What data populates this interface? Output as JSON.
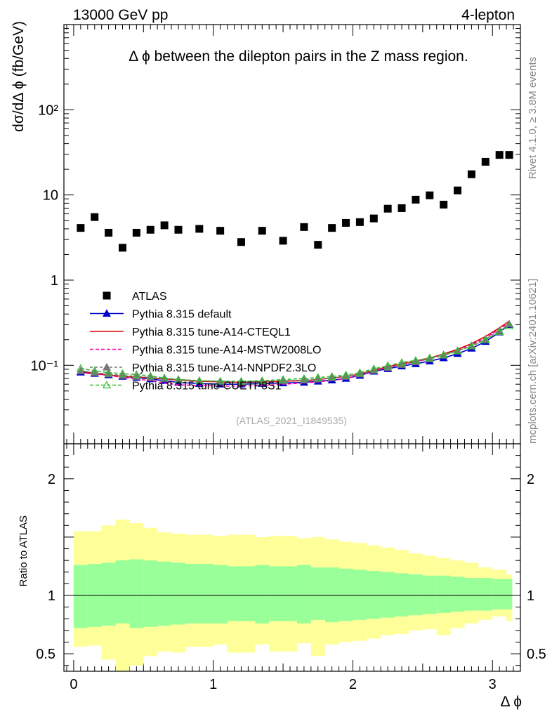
{
  "header": {
    "left": "13000 GeV pp",
    "right": "4-lepton"
  },
  "side_labels": {
    "rivet": "Rivet 4.1.0, ≥ 3.8M events",
    "mcplots": "mcplots.cern.ch [arXiv:2401.10621]"
  },
  "chart_data": {
    "type": "scatter",
    "title": "Δ ϕ between the dilepton pairs in the Z mass region.",
    "analysis_id": "(ATLAS_2021_I1849535)",
    "xlabel": "Δ ϕ",
    "ylabel": "dσ/dΔ ϕ (fb/GeV)",
    "ratio_ylabel": "Ratio to ATLAS",
    "xlim": [
      -0.07,
      3.2
    ],
    "ylim": [
      0.012,
      1000
    ],
    "ratio_ylim": [
      0.35,
      2.3
    ],
    "yscale": "log",
    "x_ticks": [
      0,
      1,
      2,
      3
    ],
    "y_tick_labels": [
      {
        "value": 0.1,
        "text": "10⁻¹"
      },
      {
        "value": 1,
        "text": "1"
      },
      {
        "value": 10,
        "text": "10"
      },
      {
        "value": 100,
        "text": "10²"
      }
    ],
    "ratio_tick_labels": [
      {
        "value": 0.5,
        "text": "0.5"
      },
      {
        "value": 1,
        "text": "1"
      },
      {
        "value": 2,
        "text": "2"
      }
    ],
    "bin_edges": [
      0,
      0.1,
      0.2,
      0.3,
      0.4,
      0.5,
      0.6,
      0.7,
      0.8,
      1.0,
      1.1,
      1.3,
      1.4,
      1.6,
      1.7,
      1.8,
      1.9,
      2.0,
      2.1,
      2.2,
      2.3,
      2.4,
      2.5,
      2.6,
      2.7,
      2.8,
      2.9,
      3.0,
      3.1,
      3.1416
    ],
    "x": [
      0.05,
      0.15,
      0.25,
      0.35,
      0.45,
      0.55,
      0.65,
      0.75,
      0.9,
      1.05,
      1.2,
      1.35,
      1.5,
      1.65,
      1.75,
      1.85,
      1.95,
      2.05,
      2.15,
      2.25,
      2.35,
      2.45,
      2.55,
      2.65,
      2.75,
      2.85,
      2.95,
      3.05,
      3.12
    ],
    "atlas": {
      "name": "ATLAS",
      "values": [
        4.1,
        5.5,
        3.6,
        2.4,
        3.6,
        3.9,
        4.4,
        3.9,
        4.0,
        3.8,
        2.8,
        3.8,
        2.9,
        4.2,
        2.6,
        4.1,
        4.7,
        4.8,
        5.3,
        6.9,
        7.0,
        8.8,
        9.9,
        7.7,
        11.3,
        17.5,
        24.5,
        29.5,
        29.5
      ],
      "band_inner_lo": [
        0.72,
        0.73,
        0.74,
        0.76,
        0.72,
        0.73,
        0.74,
        0.75,
        0.76,
        0.76,
        0.78,
        0.76,
        0.78,
        0.76,
        0.79,
        0.77,
        0.78,
        0.79,
        0.8,
        0.81,
        0.82,
        0.83,
        0.84,
        0.85,
        0.86,
        0.87,
        0.87,
        0.88,
        0.88
      ],
      "band_inner_hi": [
        1.26,
        1.27,
        1.28,
        1.3,
        1.31,
        1.3,
        1.29,
        1.28,
        1.27,
        1.26,
        1.25,
        1.26,
        1.25,
        1.26,
        1.24,
        1.24,
        1.23,
        1.22,
        1.21,
        1.2,
        1.19,
        1.18,
        1.17,
        1.17,
        1.16,
        1.15,
        1.15,
        1.14,
        1.14
      ],
      "band_outer_lo": [
        0.56,
        0.57,
        0.45,
        0.35,
        0.4,
        0.48,
        0.52,
        0.51,
        0.56,
        0.58,
        0.51,
        0.58,
        0.52,
        0.59,
        0.48,
        0.58,
        0.6,
        0.61,
        0.63,
        0.66,
        0.67,
        0.7,
        0.71,
        0.66,
        0.72,
        0.76,
        0.79,
        0.82,
        0.78
      ],
      "band_outer_hi": [
        1.55,
        1.55,
        1.6,
        1.65,
        1.62,
        1.58,
        1.54,
        1.53,
        1.52,
        1.51,
        1.52,
        1.5,
        1.51,
        1.49,
        1.5,
        1.48,
        1.46,
        1.45,
        1.43,
        1.41,
        1.39,
        1.36,
        1.34,
        1.32,
        1.3,
        1.28,
        1.24,
        1.22,
        1.18
      ]
    },
    "series": [
      {
        "name": "Pythia 8.315 default",
        "color": "#0000cc",
        "dash": "",
        "marker": "triangle-filled",
        "values": [
          0.083,
          0.08,
          0.077,
          0.074,
          0.072,
          0.069,
          0.066,
          0.063,
          0.061,
          0.06,
          0.06,
          0.061,
          0.062,
          0.063,
          0.065,
          0.067,
          0.07,
          0.076,
          0.085,
          0.091,
          0.098,
          0.104,
          0.112,
          0.122,
          0.137,
          0.158,
          0.19,
          0.245,
          0.3
        ]
      },
      {
        "name": "Pythia 8.315 tune-A14-CTEQL1",
        "color": "#e00000",
        "dash": "",
        "marker": "none",
        "values": [
          0.085,
          0.081,
          0.077,
          0.074,
          0.073,
          0.071,
          0.069,
          0.067,
          0.065,
          0.064,
          0.063,
          0.064,
          0.065,
          0.066,
          0.068,
          0.071,
          0.074,
          0.079,
          0.088,
          0.096,
          0.104,
          0.112,
          0.122,
          0.136,
          0.154,
          0.18,
          0.218,
          0.275,
          0.33
        ]
      },
      {
        "name": "Pythia 8.315 tune-A14-MSTW2008LO",
        "color": "#ff00aa",
        "dash": "5,3",
        "marker": "none",
        "values": [
          0.082,
          0.079,
          0.076,
          0.072,
          0.069,
          0.066,
          0.062,
          0.059,
          0.058,
          0.057,
          0.057,
          0.058,
          0.06,
          0.062,
          0.064,
          0.066,
          0.07,
          0.077,
          0.086,
          0.094,
          0.102,
          0.11,
          0.12,
          0.132,
          0.15,
          0.175,
          0.21,
          0.265,
          0.32
        ]
      },
      {
        "name": "Pythia 8.315 tune-A14-NNPDF2.3LO",
        "color": "#777777",
        "dash": "4,3",
        "marker": "triangle-filled",
        "values": [
          0.086,
          0.082,
          0.079,
          0.076,
          0.074,
          0.072,
          0.07,
          0.068,
          0.066,
          0.065,
          0.064,
          0.065,
          0.066,
          0.067,
          0.069,
          0.071,
          0.074,
          0.079,
          0.087,
          0.094,
          0.102,
          0.11,
          0.119,
          0.131,
          0.147,
          0.17,
          0.203,
          0.255,
          0.305
        ]
      },
      {
        "name": "Pythia 8.315 tune-CUETP8S1",
        "color": "#33bb33",
        "dash": "5,3",
        "marker": "triangle-open",
        "values": [
          0.092,
          0.086,
          0.082,
          0.08,
          0.078,
          0.075,
          0.071,
          0.068,
          0.066,
          0.065,
          0.065,
          0.066,
          0.068,
          0.07,
          0.072,
          0.074,
          0.077,
          0.082,
          0.091,
          0.099,
          0.108,
          0.114,
          0.122,
          0.133,
          0.148,
          0.168,
          0.198,
          0.248,
          0.29
        ]
      }
    ]
  }
}
